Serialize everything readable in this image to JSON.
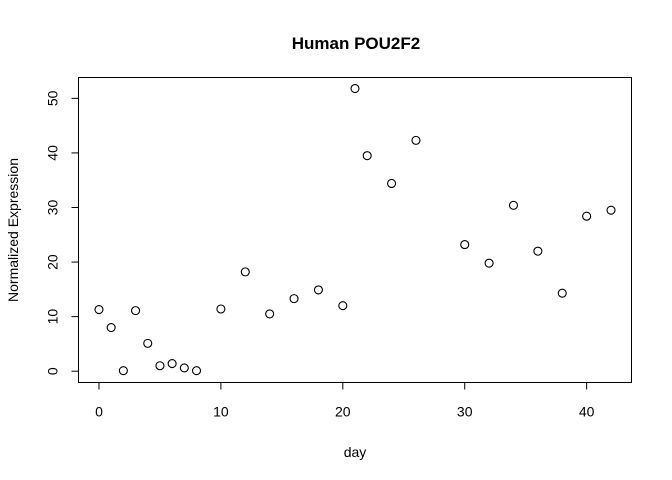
{
  "chart_data": {
    "type": "scatter",
    "title": "Human POU2F2",
    "xlabel": "day",
    "ylabel": "Normalized Expression",
    "xlim": [
      -1.68,
      43.68
    ],
    "ylim": [
      -2.07,
      53.82
    ],
    "xticks": [
      0,
      10,
      20,
      30,
      40
    ],
    "yticks": [
      0,
      10,
      20,
      30,
      40,
      50
    ],
    "grid": false,
    "legend": "none",
    "marker": "open-circle",
    "points": [
      {
        "x": 0,
        "y": 11.3
      },
      {
        "x": 1,
        "y": 8.0
      },
      {
        "x": 2,
        "y": 0.1
      },
      {
        "x": 3,
        "y": 11.1
      },
      {
        "x": 4,
        "y": 5.1
      },
      {
        "x": 5,
        "y": 1.0
      },
      {
        "x": 6,
        "y": 1.4
      },
      {
        "x": 7,
        "y": 0.6
      },
      {
        "x": 8,
        "y": 0.1
      },
      {
        "x": 10,
        "y": 11.4
      },
      {
        "x": 12,
        "y": 18.2
      },
      {
        "x": 14,
        "y": 10.5
      },
      {
        "x": 16,
        "y": 13.3
      },
      {
        "x": 18,
        "y": 14.9
      },
      {
        "x": 20,
        "y": 12.0
      },
      {
        "x": 21,
        "y": 51.8
      },
      {
        "x": 22,
        "y": 39.5
      },
      {
        "x": 24,
        "y": 34.4
      },
      {
        "x": 26,
        "y": 42.3
      },
      {
        "x": 30,
        "y": 23.2
      },
      {
        "x": 32,
        "y": 19.8
      },
      {
        "x": 34,
        "y": 30.4
      },
      {
        "x": 36,
        "y": 22.0
      },
      {
        "x": 38,
        "y": 14.3
      },
      {
        "x": 40,
        "y": 28.4
      },
      {
        "x": 42,
        "y": 29.5
      }
    ]
  }
}
